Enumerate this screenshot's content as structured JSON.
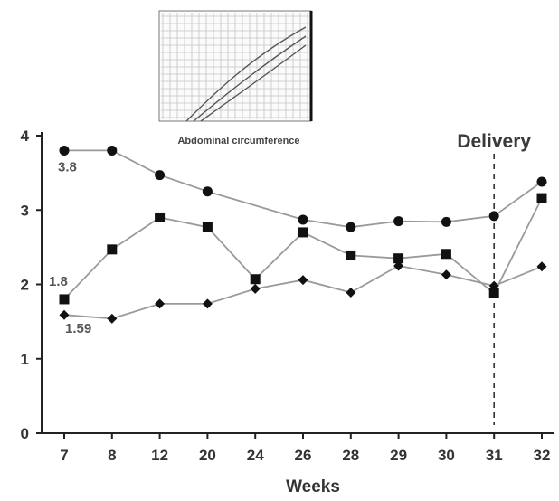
{
  "chart_data": {
    "type": "line",
    "title": "",
    "xlabel": "Weeks",
    "ylabel": "",
    "categories": [
      "7",
      "8",
      "12",
      "20",
      "24",
      "26",
      "28",
      "29",
      "30",
      "31",
      "32"
    ],
    "ylim": [
      0,
      4
    ],
    "yticks": [
      0,
      1,
      2,
      3,
      4
    ],
    "grid": false,
    "series": [
      {
        "marker": "circle",
        "values": [
          3.8,
          3.8,
          3.47,
          3.25,
          null,
          2.87,
          2.77,
          2.85,
          2.84,
          2.92,
          3.38
        ]
      },
      {
        "marker": "square",
        "values": [
          1.8,
          2.47,
          2.9,
          2.77,
          2.07,
          2.7,
          2.39,
          2.35,
          2.41,
          1.88,
          3.16
        ]
      },
      {
        "marker": "diamond",
        "values": [
          1.59,
          1.54,
          1.74,
          1.74,
          1.94,
          2.06,
          1.89,
          2.25,
          2.13,
          1.98,
          2.24
        ]
      }
    ],
    "annotations": [
      {
        "text": "3.8",
        "series": 0,
        "index": 0
      },
      {
        "text": "1.8",
        "series": 1,
        "index": 0
      },
      {
        "text": "1.59",
        "series": 2,
        "index": 0
      }
    ],
    "vline": {
      "label": "Delivery",
      "x": "31",
      "style": "dashed"
    },
    "inset": {
      "title": "Abdominal circumference"
    },
    "colors": {
      "line": "#9a9a9a",
      "marker": "#111111",
      "axis": "#222222",
      "text": "#333333"
    }
  }
}
